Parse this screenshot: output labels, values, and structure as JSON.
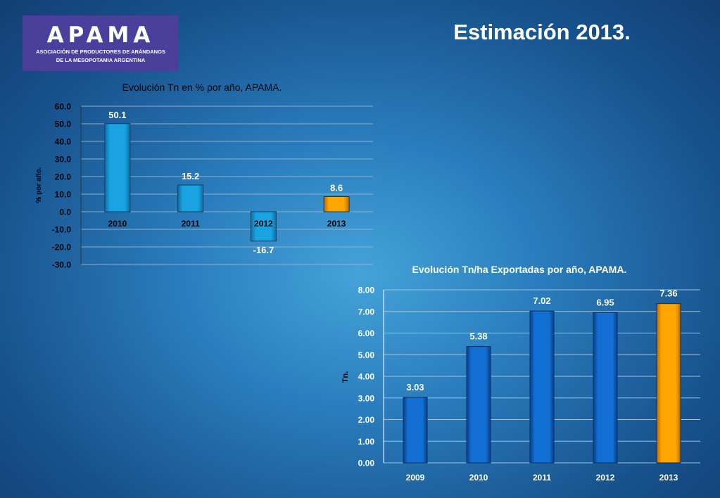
{
  "logo": {
    "name": "APAMA",
    "subtitle_line1": "ASOCIACIÓN DE PRODUCTORES DE ARÁNDANOS",
    "subtitle_line2": "DE LA MESOPOTAMIA ARGENTINA"
  },
  "slide_title": "Estimación 2013.",
  "colors": {
    "bar_2010_2012": "#1aa3e2",
    "bar_blue": "#1270d4",
    "bar_highlight": "#ffa500",
    "text_dark": "#000000",
    "text_light": "#ffffff"
  },
  "chart_data": [
    {
      "type": "bar",
      "title": "Evolución Tn en % por año, APAMA.",
      "ylabel": "% por año.",
      "xlabel": "",
      "categories": [
        "2010",
        "2011",
        "2012",
        "2013"
      ],
      "values": [
        50.1,
        15.2,
        -16.7,
        8.6
      ],
      "value_labels": [
        "50.1",
        "15.2",
        "-16.7",
        "8.6"
      ],
      "highlight_category": "2013",
      "ylim": [
        -30,
        60
      ],
      "yticks": [
        "60.0",
        "50.0",
        "40.0",
        "30.0",
        "20.0",
        "10.0",
        "0.0",
        "-10.0",
        "-20.0",
        "-30.0"
      ],
      "grid": true,
      "legend": "none"
    },
    {
      "type": "bar",
      "title": "Evolución Tn/ha Exportadas por año, APAMA.",
      "ylabel": "Tn.",
      "xlabel": "",
      "categories": [
        "2009",
        "2010",
        "2011",
        "2012",
        "2013"
      ],
      "values": [
        3.03,
        5.38,
        7.02,
        6.95,
        7.36
      ],
      "value_labels": [
        "3.03",
        "5.38",
        "7.02",
        "6.95",
        "7.36"
      ],
      "highlight_category": "2013",
      "ylim": [
        0,
        8
      ],
      "yticks": [
        "8.00",
        "7.00",
        "6.00",
        "5.00",
        "4.00",
        "3.00",
        "2.00",
        "1.00",
        "0.00"
      ],
      "grid": true,
      "legend": "none"
    }
  ]
}
